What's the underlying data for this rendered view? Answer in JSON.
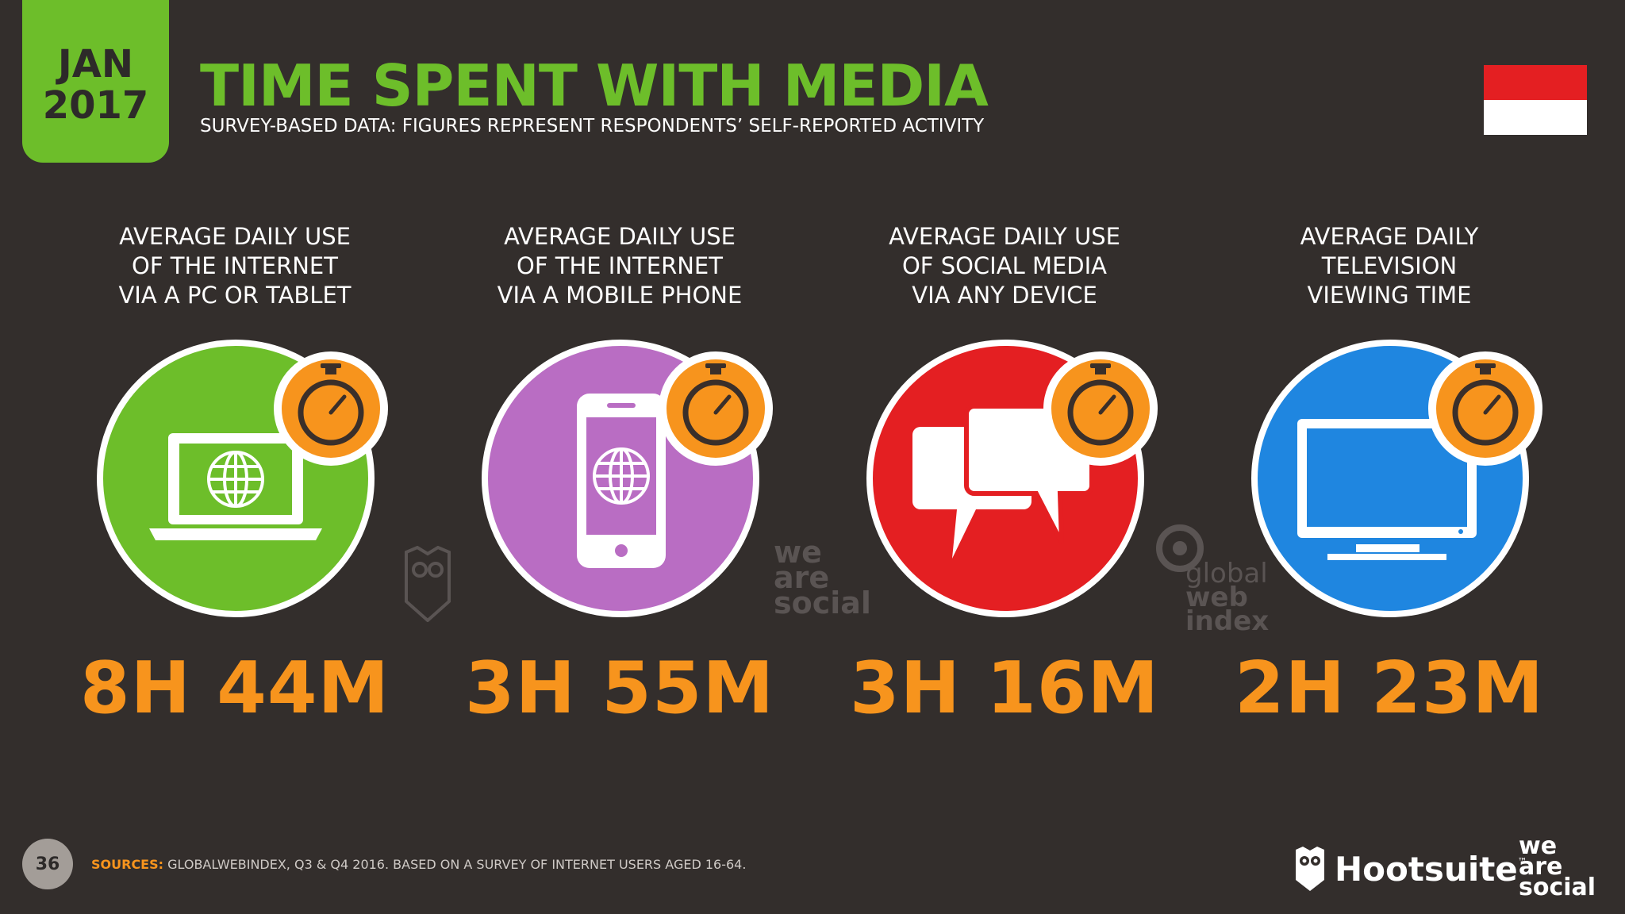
{
  "badge": {
    "month": "JAN",
    "year": "2017"
  },
  "header": {
    "title": "TIME SPENT WITH MEDIA",
    "subtitle": "SURVEY-BASED DATA: FIGURES REPRESENT RESPONDENTS’ SELF-REPORTED ACTIVITY"
  },
  "colors": {
    "green": "#6dbe2a",
    "purple": "#b96dc3",
    "red": "#e41f22",
    "blue": "#1f86e0",
    "orange": "#f7941d"
  },
  "stats": [
    {
      "label_lines": [
        "AVERAGE DAILY USE",
        "OF THE INTERNET",
        "VIA A PC OR TABLET"
      ],
      "value": "8H 44M",
      "icon": "laptop-globe-icon"
    },
    {
      "label_lines": [
        "AVERAGE DAILY USE",
        "OF THE INTERNET",
        "VIA A MOBILE PHONE"
      ],
      "value": "3H 55M",
      "icon": "mobile-globe-icon"
    },
    {
      "label_lines": [
        "AVERAGE DAILY USE",
        "OF SOCIAL MEDIA",
        "VIA ANY DEVICE"
      ],
      "value": "3H 16M",
      "icon": "speech-bubbles-icon"
    },
    {
      "label_lines": [
        "AVERAGE DAILY",
        "TELEVISION",
        "VIEWING TIME"
      ],
      "value": "2H 23M",
      "icon": "television-icon"
    }
  ],
  "watermarks": {
    "was": [
      "we",
      "are",
      "social"
    ],
    "gwi": [
      "global",
      "web",
      "index"
    ]
  },
  "footer": {
    "page_number": "36",
    "sources_lead": "SOURCES:",
    "sources_text": " GLOBALWEBINDEX, Q3 & Q4 2016. BASED ON A SURVEY OF INTERNET USERS AGED 16-64.",
    "brand_hootsuite": "Hootsuite",
    "brand_tm": "™",
    "brand_was": [
      "we",
      "are",
      "social"
    ]
  }
}
